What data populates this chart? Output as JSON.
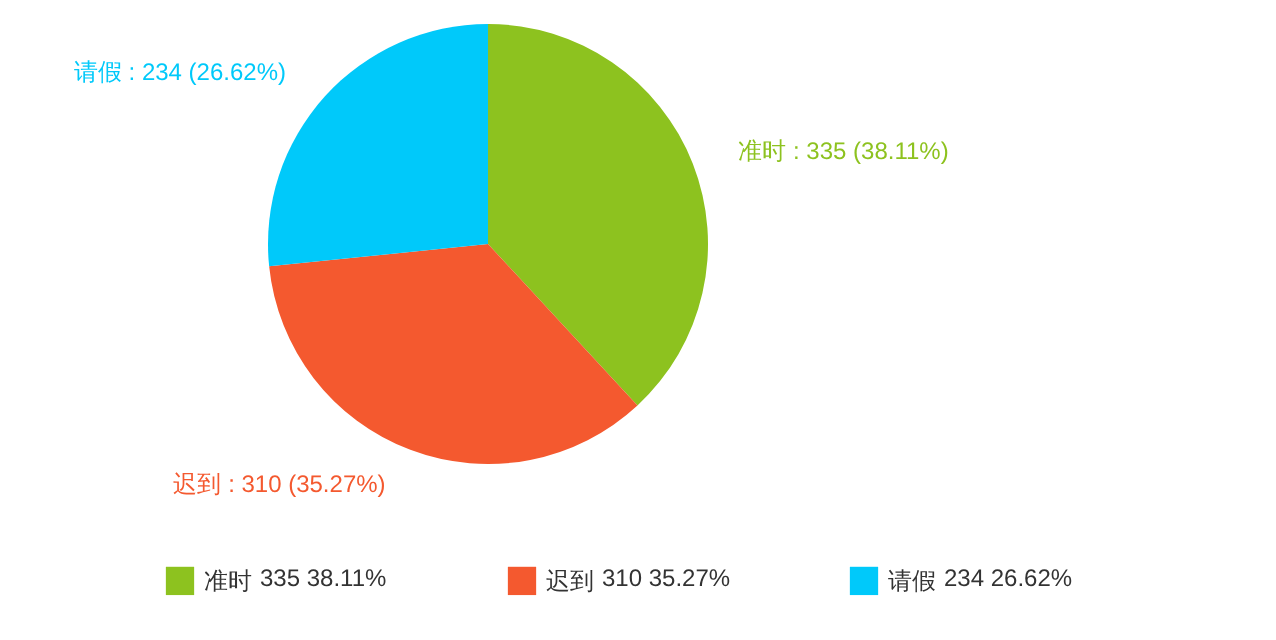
{
  "chart_data": {
    "type": "pie",
    "categories": [
      "准时",
      "迟到",
      "请假"
    ],
    "values": [
      335,
      310,
      234
    ],
    "colors": [
      "#8dc21f",
      "#f4592f",
      "#00c9fa"
    ],
    "value_labels": [
      ": 335 (38.11%)",
      ": 310 (35.27%)",
      ": 234 (26.62%)"
    ],
    "legend": "bottom",
    "annotations": [
      "335     38.11%",
      "310     35.27%",
      "234     26.62%"
    ]
  }
}
